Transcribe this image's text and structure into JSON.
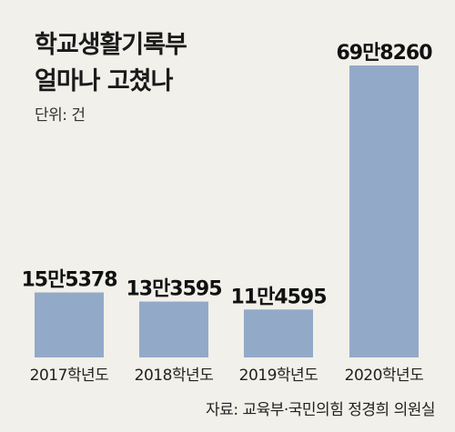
{
  "chart_data": {
    "type": "bar",
    "title": [
      "학교생활기록부",
      "얼마나 고쳤나"
    ],
    "unit": "단위: 건",
    "categories": [
      "2017학년도",
      "2018학년도",
      "2019학년도",
      "2020학년도"
    ],
    "values": [
      155378,
      133595,
      114595,
      698260
    ],
    "value_labels": [
      "15만5378",
      "13만3595",
      "11만4595",
      "69만8260"
    ],
    "ylim": [
      0,
      698260
    ],
    "grid": false,
    "source": "자료: 교육부·국민의힘 정경희 의원실",
    "bar_color": "#93a9c8"
  }
}
